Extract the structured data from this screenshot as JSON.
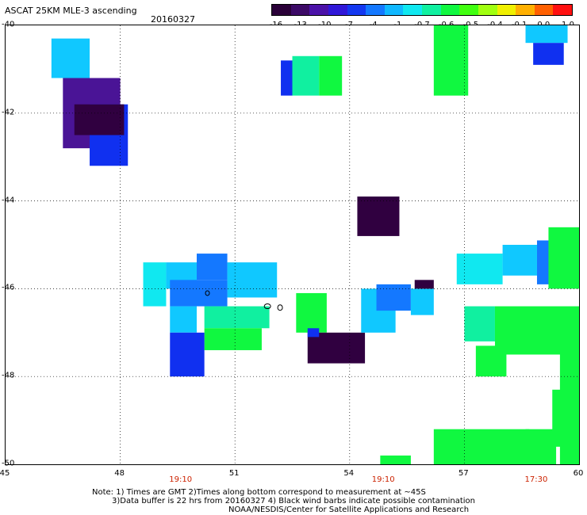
{
  "title": "ASCAT 25KM MLE-3 ascending",
  "date": "20160327",
  "colorbar": {
    "ticks": [
      "-16",
      "-13",
      "-10",
      "-7",
      "-4",
      "-1",
      "-0.7",
      "-0.6",
      "-0.5",
      "-0.4",
      "-0.1",
      "0.0",
      "1.0"
    ],
    "colors": [
      "#2a0038",
      "#3c0a66",
      "#4b12a8",
      "#3018d8",
      "#1438f0",
      "#1478ff",
      "#10b8ff",
      "#10e8f0",
      "#10f0a0",
      "#10f840",
      "#40ff10",
      "#a0ff10",
      "#f0f000",
      "#ffb000",
      "#ff6000",
      "#ff1010"
    ]
  },
  "axes": {
    "lat_labels": [
      "-40",
      "-42",
      "-44",
      "-46",
      "-48",
      "-50"
    ],
    "lon_labels": [
      "45",
      "48",
      "51",
      "54",
      "57",
      "60"
    ],
    "lon_range": [
      45,
      60
    ],
    "lat_range": [
      -40,
      -50
    ],
    "times": [
      {
        "label": "19:10",
        "lon": 49.6
      },
      {
        "label": "19:10",
        "lon": 54.9
      },
      {
        "label": "17:30",
        "lon": 58.9
      }
    ]
  },
  "notes": {
    "line1": "Note: 1) Times are GMT 2)Times along bottom correspond to measurement at ~45S",
    "line2": "3)Data buffer is 22 hrs from 20160327 4) Black wind barbs indicate possible contamination",
    "line3": "NOAA/NESDIS/Center for Satellite Applications and Research"
  },
  "map_colors": {
    "dark": "#300040",
    "purple": "#4a1496",
    "blue": "#1030f0",
    "midblue": "#1478ff",
    "cyan": "#10c8ff",
    "lightcyan": "#10e8f0",
    "teal": "#10f0a0",
    "green": "#10f840",
    "lime": "#30ff20"
  },
  "chart_data": {
    "type": "heatmap",
    "title": "ASCAT 25KM MLE-3 ascending",
    "xlabel": "",
    "ylabel": "",
    "xlim": [
      45,
      60
    ],
    "ylim": [
      -50,
      -40
    ],
    "xticks": [
      45,
      48,
      51,
      54,
      57,
      60
    ],
    "yticks": [
      -40,
      -42,
      -44,
      -46,
      -48,
      -50
    ],
    "cells": [
      {
        "lon": [
          46.2,
          47.2
        ],
        "lat": [
          -40.3,
          -41.2
        ],
        "c": "cyan"
      },
      {
        "lon": [
          46.5,
          48.0
        ],
        "lat": [
          -41.2,
          -42.8
        ],
        "c": "purple"
      },
      {
        "lon": [
          47.2,
          48.2
        ],
        "lat": [
          -41.8,
          -43.2
        ],
        "c": "blue"
      },
      {
        "lon": [
          46.8,
          48.1
        ],
        "lat": [
          -41.8,
          -42.5
        ],
        "c": "dark"
      },
      {
        "lon": [
          52.2,
          52.5
        ],
        "lat": [
          -40.8,
          -41.6
        ],
        "c": "blue"
      },
      {
        "lon": [
          52.5,
          53.2
        ],
        "lat": [
          -40.7,
          -41.6
        ],
        "c": "teal"
      },
      {
        "lon": [
          53.2,
          53.8
        ],
        "lat": [
          -40.7,
          -41.6
        ],
        "c": "green"
      },
      {
        "lon": [
          56.2,
          57.1
        ],
        "lat": [
          -40.0,
          -41.6
        ],
        "c": "green"
      },
      {
        "lon": [
          58.6,
          59.7
        ],
        "lat": [
          -40.0,
          -40.4
        ],
        "c": "cyan"
      },
      {
        "lon": [
          58.8,
          59.6
        ],
        "lat": [
          -40.4,
          -40.9
        ],
        "c": "blue"
      },
      {
        "lon": [
          54.2,
          55.3
        ],
        "lat": [
          -43.9,
          -44.8
        ],
        "c": "dark"
      },
      {
        "lon": [
          48.6,
          49.2
        ],
        "lat": [
          -45.4,
          -46.4
        ],
        "c": "lightcyan"
      },
      {
        "lon": [
          49.2,
          50.0
        ],
        "lat": [
          -45.4,
          -46.0
        ],
        "c": "cyan"
      },
      {
        "lon": [
          50.0,
          50.8
        ],
        "lat": [
          -45.2,
          -45.8
        ],
        "c": "midblue"
      },
      {
        "lon": [
          50.8,
          52.1
        ],
        "lat": [
          -45.4,
          -46.2
        ],
        "c": "cyan"
      },
      {
        "lon": [
          49.3,
          50.8
        ],
        "lat": [
          -45.8,
          -46.4
        ],
        "c": "midblue"
      },
      {
        "lon": [
          49.3,
          50.0
        ],
        "lat": [
          -46.4,
          -47.0
        ],
        "c": "cyan"
      },
      {
        "lon": [
          50.2,
          51.9
        ],
        "lat": [
          -46.4,
          -46.9
        ],
        "c": "teal"
      },
      {
        "lon": [
          50.2,
          51.7
        ],
        "lat": [
          -46.9,
          -47.4
        ],
        "c": "green"
      },
      {
        "lon": [
          49.3,
          50.2
        ],
        "lat": [
          -47.0,
          -48.0
        ],
        "c": "blue"
      },
      {
        "lon": [
          52.6,
          53.4
        ],
        "lat": [
          -46.1,
          -47.0
        ],
        "c": "green"
      },
      {
        "lon": [
          52.9,
          54.4
        ],
        "lat": [
          -47.0,
          -47.7
        ],
        "c": "dark"
      },
      {
        "lon": [
          52.9,
          53.2
        ],
        "lat": [
          -46.9,
          -47.1
        ],
        "c": "blue"
      },
      {
        "lon": [
          54.3,
          55.2
        ],
        "lat": [
          -46.0,
          -47.0
        ],
        "c": "cyan"
      },
      {
        "lon": [
          54.7,
          55.6
        ],
        "lat": [
          -45.9,
          -46.5
        ],
        "c": "midblue"
      },
      {
        "lon": [
          55.6,
          56.2
        ],
        "lat": [
          -46.0,
          -46.6
        ],
        "c": "cyan"
      },
      {
        "lon": [
          55.7,
          56.2
        ],
        "lat": [
          -45.8,
          -46.0
        ],
        "c": "dark"
      },
      {
        "lon": [
          56.8,
          58.0
        ],
        "lat": [
          -45.2,
          -45.9
        ],
        "c": "lightcyan"
      },
      {
        "lon": [
          58.0,
          58.9
        ],
        "lat": [
          -45.0,
          -45.7
        ],
        "c": "cyan"
      },
      {
        "lon": [
          58.9,
          59.6
        ],
        "lat": [
          -44.9,
          -45.9
        ],
        "c": "midblue"
      },
      {
        "lon": [
          59.2,
          60.0
        ],
        "lat": [
          -44.6,
          -46.0
        ],
        "c": "green"
      },
      {
        "lon": [
          57.0,
          57.8
        ],
        "lat": [
          -46.4,
          -47.2
        ],
        "c": "teal"
      },
      {
        "lon": [
          57.8,
          60.0
        ],
        "lat": [
          -46.4,
          -47.5
        ],
        "c": "green"
      },
      {
        "lon": [
          57.3,
          58.1
        ],
        "lat": [
          -47.3,
          -48.0
        ],
        "c": "green"
      },
      {
        "lon": [
          59.5,
          60.0
        ],
        "lat": [
          -47.0,
          -50.0
        ],
        "c": "green"
      },
      {
        "lon": [
          59.3,
          59.6
        ],
        "lat": [
          -48.3,
          -49.6
        ],
        "c": "green"
      },
      {
        "lon": [
          56.2,
          58.7
        ],
        "lat": [
          -49.2,
          -50.0
        ],
        "c": "green"
      },
      {
        "lon": [
          58.6,
          59.4
        ],
        "lat": [
          -49.2,
          -50.0
        ],
        "c": "green"
      },
      {
        "lon": [
          54.8,
          55.6
        ],
        "lat": [
          -49.8,
          -50.0
        ],
        "c": "green"
      }
    ]
  }
}
